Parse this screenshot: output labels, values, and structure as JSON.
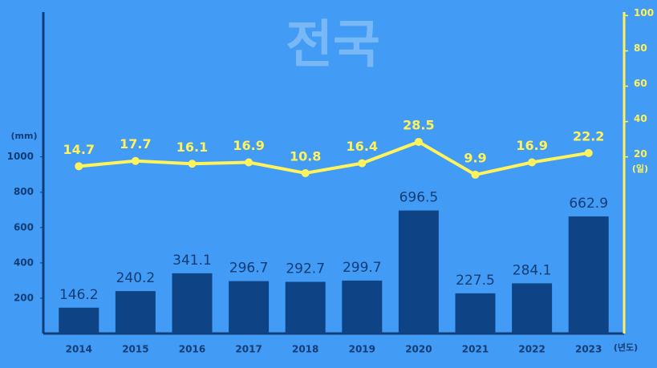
{
  "chart_data": {
    "type": "bar",
    "title": "전국",
    "y_label": "(mm)",
    "y2_label": "(일)",
    "x_label": "(년도)",
    "categories": [
      "2014",
      "2015",
      "2016",
      "2017",
      "2018",
      "2019",
      "2020",
      "2021",
      "2022",
      "2023"
    ],
    "series": [
      {
        "type": "bar",
        "color": "#0e4485",
        "values": [
          146.2,
          240.2,
          341.1,
          296.7,
          292.7,
          299.7,
          696.5,
          227.5,
          284.1,
          662.9
        ]
      },
      {
        "type": "line",
        "axis": "y2",
        "color": "#fff35c",
        "values": [
          14.7,
          17.7,
          16.1,
          16.9,
          10.8,
          16.4,
          28.5,
          9.9,
          16.9,
          22.2
        ]
      }
    ],
    "ylim": [
      0,
      1820
    ],
    "yticks": [
      200,
      400,
      600,
      800,
      1000
    ],
    "y2lim": [
      -80,
      102
    ],
    "y2ticks": [
      20,
      40,
      60,
      80,
      100
    ]
  }
}
